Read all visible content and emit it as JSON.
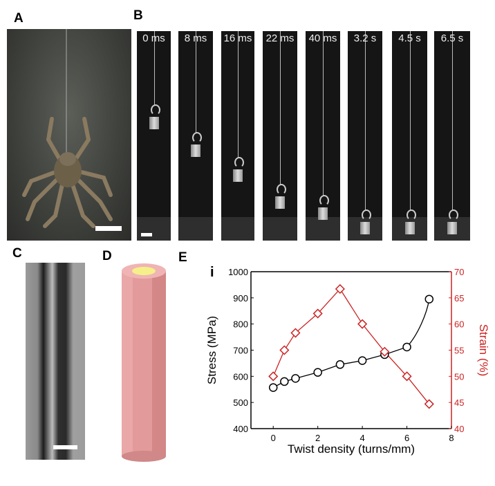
{
  "panels": {
    "a": "A",
    "b": "B",
    "c": "C",
    "d": "D",
    "e": "E"
  },
  "frames": [
    {
      "label": "0 ms",
      "weight_top": 0.41
    },
    {
      "label": "8 ms",
      "weight_top": 0.54
    },
    {
      "label": "16 ms",
      "weight_top": 0.66
    },
    {
      "label": "22 ms",
      "weight_top": 0.79
    },
    {
      "label": "40 ms",
      "weight_top": 0.84
    },
    {
      "label": "3.2 s",
      "weight_top": 0.91
    },
    {
      "label": "4.5 s",
      "weight_top": 0.91
    },
    {
      "label": "6.5 s",
      "weight_top": 0.91
    }
  ],
  "colors": {
    "stress": "#000000",
    "strain": "#cc2222",
    "cylinder": "#e39a9a",
    "core": "#f5f08a"
  },
  "chart_data": {
    "type": "line",
    "panel_label": "i",
    "xlabel": "Twist density (turns/mm)",
    "ylabel": "Stress (MPa)",
    "y2label": "Strain (%)",
    "xlim": [
      -1,
      8
    ],
    "ylim": [
      400,
      1000
    ],
    "y2lim": [
      40,
      70
    ],
    "xticks": [
      0,
      2,
      4,
      6,
      8
    ],
    "yticks": [
      400,
      500,
      600,
      700,
      800,
      900,
      1000
    ],
    "y2ticks": [
      40,
      45,
      50,
      55,
      60,
      65,
      70
    ],
    "x": [
      0,
      0.5,
      1,
      2,
      3,
      4,
      5,
      6,
      7
    ],
    "series": [
      {
        "axis": "left",
        "marker": "circle",
        "values": [
          557,
          580,
          592,
          615,
          645,
          660,
          683,
          712,
          895
        ]
      },
      {
        "axis": "right",
        "marker": "diamond",
        "values": [
          50,
          55,
          58.3,
          62,
          66.7,
          60,
          54.7,
          50,
          44.7
        ]
      }
    ]
  }
}
